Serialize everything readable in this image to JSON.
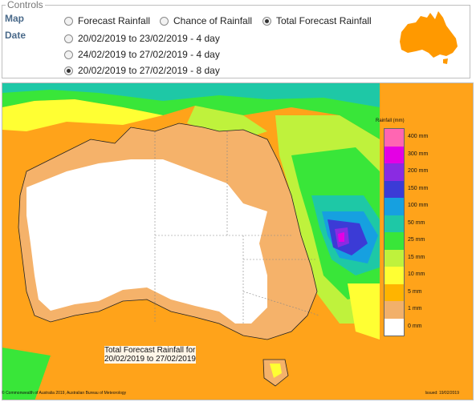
{
  "controls": {
    "legend": "Controls",
    "map_label": "Map",
    "date_label": "Date",
    "map_options": [
      {
        "label": "Forecast Rainfall",
        "selected": false
      },
      {
        "label": "Chance of Rainfall",
        "selected": false
      },
      {
        "label": "Total Forecast Rainfall",
        "selected": true
      }
    ],
    "date_options": [
      {
        "label": "20/02/2019 to 23/02/2019 - 4 day",
        "selected": false
      },
      {
        "label": "24/02/2019 to 27/02/2019 - 4 day",
        "selected": false
      },
      {
        "label": "20/02/2019 to 27/02/2019 - 8 day",
        "selected": true
      }
    ]
  },
  "map": {
    "caption_line1": "Total Forecast Rainfall for",
    "caption_line2": "20/02/2019 to 27/02/2019",
    "copyright": "© Commonwealth of Australia 2019, Australian Bureau of Meteorology",
    "issued": "Issued: 19/02/2019",
    "legend_title": "Rainfall (mm)",
    "legend": [
      {
        "label": "400 mm",
        "color": "#ff66b2"
      },
      {
        "label": "300 mm",
        "color": "#e400e4"
      },
      {
        "label": "200 mm",
        "color": "#8a2be2"
      },
      {
        "label": "150 mm",
        "color": "#3b3bd6"
      },
      {
        "label": "100 mm",
        "color": "#16a0e0"
      },
      {
        "label": "50 mm",
        "color": "#1ec8a6"
      },
      {
        "label": "25 mm",
        "color": "#39e639"
      },
      {
        "label": "15 mm",
        "color": "#bff23c"
      },
      {
        "label": "10 mm",
        "color": "#ffff33"
      },
      {
        "label": "5 mm",
        "color": "#ffb400"
      },
      {
        "label": "1 mm",
        "color": "#f2b06a"
      },
      {
        "label": "0 mm",
        "color": "#ffffff"
      }
    ]
  },
  "colors": {
    "ocean_far": "#ffa31a",
    "ocean_orange": "#ff9b10",
    "dry": "#f5b26a",
    "land_white": "#ffffff",
    "icon_orange": "#ff9900"
  }
}
